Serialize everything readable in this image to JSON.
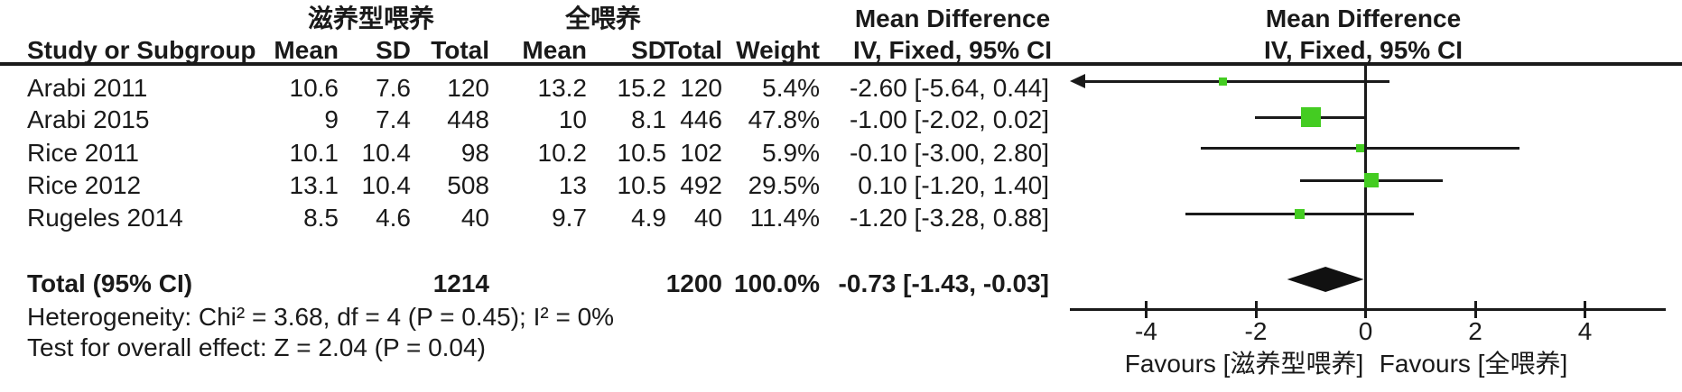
{
  "table": {
    "group1_header": "滋养型喂养",
    "group2_header": "全喂养",
    "effect_header": "Mean Difference",
    "effect_subheader": "IV, Fixed, 95% CI",
    "col_study": "Study or Subgroup",
    "col_mean": "Mean",
    "col_sd": "SD",
    "col_total": "Total",
    "col_weight": "Weight",
    "rows": [
      {
        "study": "Arabi 2011",
        "mean1": "10.6",
        "sd1": "7.6",
        "total1": "120",
        "mean2": "13.2",
        "sd2": "15.2",
        "total2": "120",
        "weight": "5.4%",
        "ci": "-2.60 [-5.64, 0.44]"
      },
      {
        "study": "Arabi 2015",
        "mean1": "9",
        "sd1": "7.4",
        "total1": "448",
        "mean2": "10",
        "sd2": "8.1",
        "total2": "446",
        "weight": "47.8%",
        "ci": "-1.00 [-2.02, 0.02]"
      },
      {
        "study": "Rice 2011",
        "mean1": "10.1",
        "sd1": "10.4",
        "total1": "98",
        "mean2": "10.2",
        "sd2": "10.5",
        "total2": "102",
        "weight": "5.9%",
        "ci": "-0.10 [-3.00, 2.80]"
      },
      {
        "study": "Rice 2012",
        "mean1": "13.1",
        "sd1": "10.4",
        "total1": "508",
        "mean2": "13",
        "sd2": "10.5",
        "total2": "492",
        "weight": "29.5%",
        "ci": "0.10 [-1.20, 1.40]"
      },
      {
        "study": "Rugeles 2014",
        "mean1": "8.5",
        "sd1": "4.6",
        "total1": "40",
        "mean2": "9.7",
        "sd2": "4.9",
        "total2": "40",
        "weight": "11.4%",
        "ci": "-1.20 [-3.28, 0.88]"
      }
    ],
    "total_row": {
      "label": "Total (95% CI)",
      "total1": "1214",
      "total2": "1200",
      "weight": "100.0%",
      "ci": "-0.73 [-1.43, -0.03]"
    },
    "heterogeneity": "Heterogeneity: Chi² = 3.68, df = 4 (P = 0.45); I² = 0%",
    "overall_effect": "Test for overall effect: Z = 2.04 (P = 0.04)"
  },
  "plot": {
    "marker_color": "#44CC22",
    "line_color": "#1a1a1a",
    "diamond_color": "#111111"
  },
  "chart_data": {
    "type": "scatter",
    "subtype": "forest-plot",
    "title": "",
    "x_ticks": [
      -4,
      -2,
      0,
      2,
      4
    ],
    "xlim": [
      -5.4,
      5.5
    ],
    "xlabel_left": "Favours [滋养型喂养]",
    "xlabel_right": "Favours [全喂养]",
    "studies": [
      {
        "name": "Arabi 2011",
        "md": -2.6,
        "ci_low": -5.64,
        "ci_high": 0.44,
        "weight": 5.4
      },
      {
        "name": "Arabi 2015",
        "md": -1.0,
        "ci_low": -2.02,
        "ci_high": 0.02,
        "weight": 47.8
      },
      {
        "name": "Rice 2011",
        "md": -0.1,
        "ci_low": -3.0,
        "ci_high": 2.8,
        "weight": 5.9
      },
      {
        "name": "Rice 2012",
        "md": 0.1,
        "ci_low": -1.2,
        "ci_high": 1.4,
        "weight": 29.5
      },
      {
        "name": "Rugeles 2014",
        "md": -1.2,
        "ci_low": -3.28,
        "ci_high": 0.88,
        "weight": 11.4
      }
    ],
    "total": {
      "name": "Total (95% CI)",
      "md": -0.73,
      "ci_low": -1.43,
      "ci_high": -0.03,
      "weight": 100.0
    }
  }
}
